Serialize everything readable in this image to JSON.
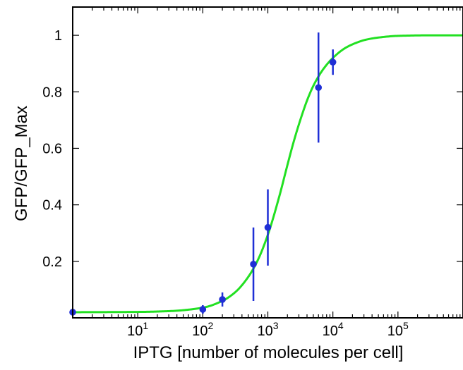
{
  "chart_data": {
    "type": "scatter",
    "title": "",
    "xlabel": "IPTG [number of molecules per cell]",
    "ylabel": "GFP/GFP_Max",
    "xscale": "log",
    "xlim": [
      1,
      1000000
    ],
    "ylim": [
      0,
      1.1
    ],
    "grid": false,
    "x_ticks": [
      {
        "value": 10,
        "base": "10",
        "exp": "1"
      },
      {
        "value": 100,
        "base": "10",
        "exp": "2"
      },
      {
        "value": 1000,
        "base": "10",
        "exp": "3"
      },
      {
        "value": 10000,
        "base": "10",
        "exp": "4"
      },
      {
        "value": 100000,
        "base": "10",
        "exp": "5"
      }
    ],
    "y_ticks": [
      {
        "value": 0.2,
        "label": "0.2"
      },
      {
        "value": 0.4,
        "label": "0.4"
      },
      {
        "value": 0.6,
        "label": "0.6"
      },
      {
        "value": 0.8,
        "label": "0.8"
      },
      {
        "value": 1.0,
        "label": "1"
      }
    ],
    "series": [
      {
        "kind": "errorbar",
        "color": "#1f2fd6",
        "points": [
          {
            "x": 1,
            "y": 0.02,
            "err": 0
          },
          {
            "x": 100,
            "y": 0.03,
            "err": 0.015
          },
          {
            "x": 200,
            "y": 0.065,
            "err": 0.025
          },
          {
            "x": 600,
            "y": 0.19,
            "err": 0.13
          },
          {
            "x": 1000,
            "y": 0.32,
            "err": 0.135
          },
          {
            "x": 6000,
            "y": 0.815,
            "err": 0.195
          },
          {
            "x": 10000,
            "y": 0.905,
            "err": 0.045
          }
        ]
      },
      {
        "kind": "line",
        "color": "#22e022",
        "x": [
          1,
          10,
          31.6,
          100,
          200,
          316,
          500,
          700,
          1000,
          1500,
          2000,
          2500,
          3162,
          4000,
          5000,
          7000,
          10000,
          15000,
          20000,
          31623,
          50000,
          100000,
          316228,
          1000000
        ],
        "y": [
          0.02,
          0.021,
          0.024,
          0.036,
          0.06,
          0.091,
          0.145,
          0.204,
          0.294,
          0.43,
          0.541,
          0.624,
          0.701,
          0.769,
          0.821,
          0.878,
          0.92,
          0.953,
          0.968,
          0.984,
          0.992,
          0.998,
          1.0,
          1.0
        ]
      }
    ]
  }
}
